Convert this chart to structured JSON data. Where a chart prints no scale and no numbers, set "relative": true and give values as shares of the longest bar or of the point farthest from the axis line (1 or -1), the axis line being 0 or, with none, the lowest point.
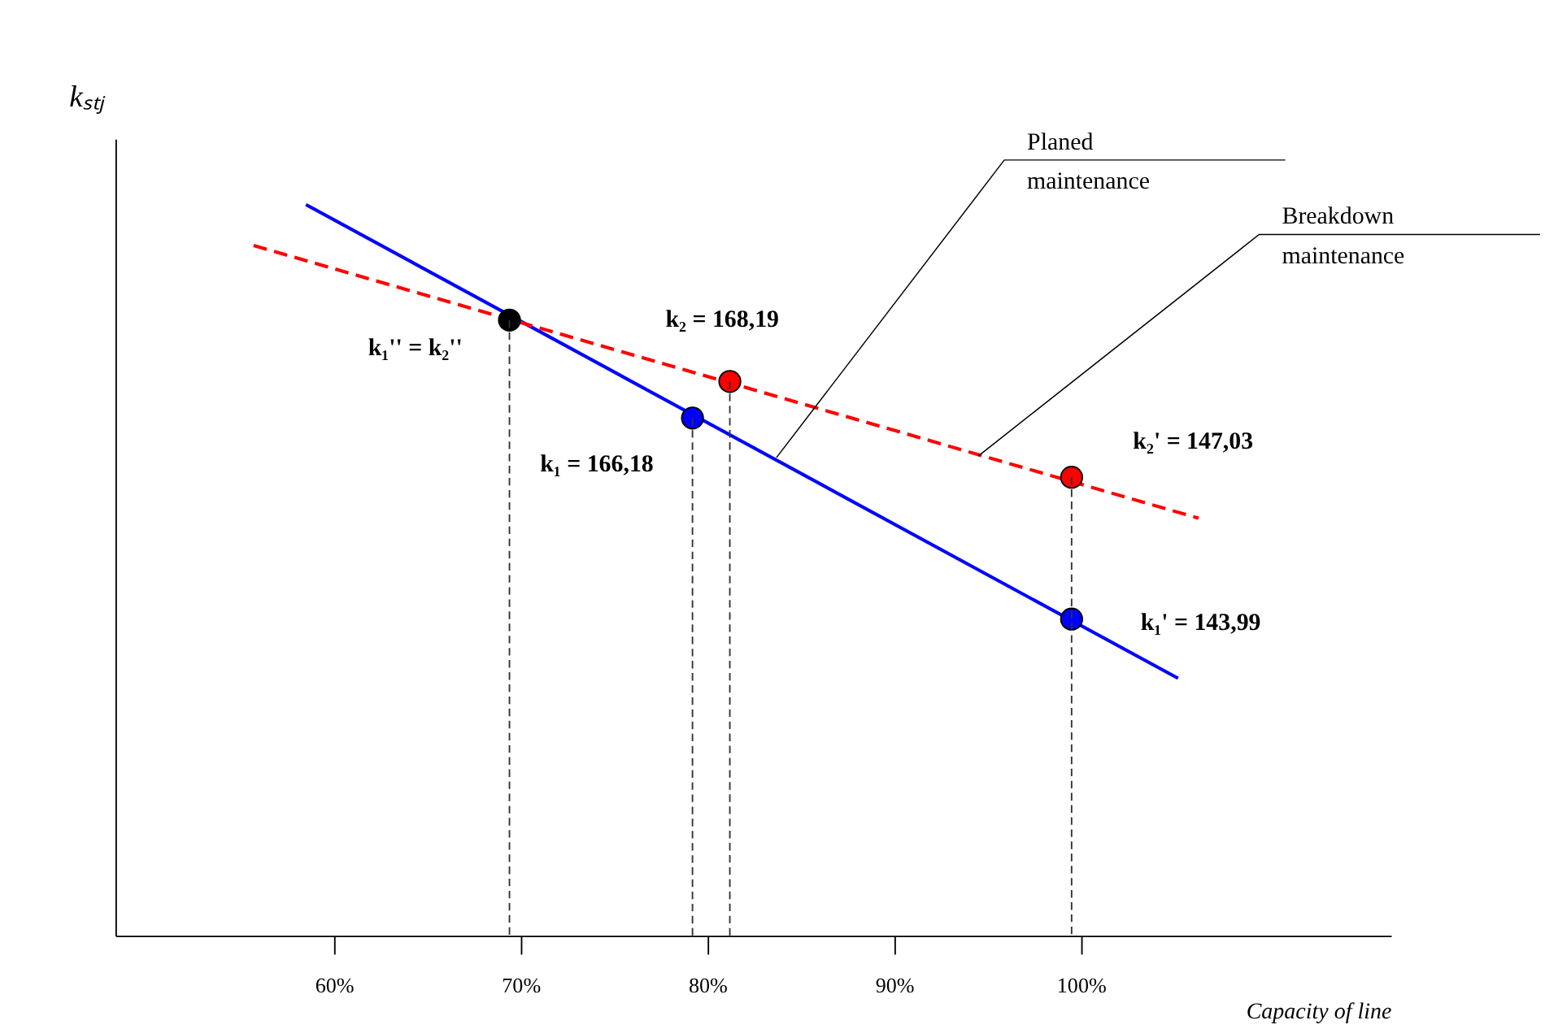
{
  "chart_data": {
    "type": "line",
    "relative": true,
    "xlabel": "Capacity of line",
    "ylabel": "kₛₜⱼ",
    "xlim": [
      48.3,
      116.6
    ],
    "xticks": [
      {
        "value": 60,
        "label": "60%"
      },
      {
        "value": 70,
        "label": "70%"
      },
      {
        "value": 80,
        "label": "80%"
      },
      {
        "value": 90,
        "label": "90%"
      },
      {
        "value": 100,
        "label": "100%"
      }
    ],
    "series": [
      {
        "color": "#0000ff",
        "x": [
          58.5,
          105.2
        ],
        "values": [
          1.0,
          0.352
        ],
        "line_style": "solid"
      },
      {
        "color": "#ff0000",
        "x": [
          55.7,
          106.3
        ],
        "values": [
          0.944,
          0.571
        ],
        "line_style": "dashed"
      },
      {
        "type": "scatter",
        "color": "#000000",
        "x": [
          69.4
        ],
        "values": [
          0.842
        ],
        "marker": "circle"
      },
      {
        "type": "scatter",
        "color": "#0000ff",
        "x": [
          79.2,
          99.5
        ],
        "values": [
          0.708,
          0.433
        ],
        "marker": "circle"
      },
      {
        "type": "scatter",
        "color": "#ff0000",
        "x": [
          81.2,
          99.5
        ],
        "values": [
          0.758,
          0.627
        ],
        "marker": "circle"
      }
    ],
    "annotations": [
      {
        "text": "k₁'' = k₂''",
        "x": 69.4,
        "y": 0.842
      },
      {
        "text": "k₂ = 168,19",
        "x": 81.2,
        "y": 0.758
      },
      {
        "text": "k₁ = 166,18",
        "x": 79.2,
        "y": 0.708
      },
      {
        "text": "k₂' = 147,03",
        "x": 99.5,
        "y": 0.627
      },
      {
        "text": "k₁' = 143,99",
        "x": 99.5,
        "y": 0.433
      },
      {
        "text": "Planed maintenance",
        "x": 83.7,
        "y": 0.654
      },
      {
        "text": "Breakdown maintenance",
        "x": 94.5,
        "y": 0.656
      }
    ],
    "ref_lines": [
      {
        "axis": "x",
        "value": 69.4,
        "color": "#333333",
        "line_style": "dashed"
      },
      {
        "axis": "x",
        "value": 79.2,
        "color": "#333333",
        "line_style": "dashed"
      },
      {
        "axis": "x",
        "value": 81.2,
        "color": "#333333",
        "line_style": "dashed"
      },
      {
        "axis": "x",
        "value": 99.5,
        "color": "#333333",
        "line_style": "dashed"
      }
    ],
    "grid": false
  }
}
